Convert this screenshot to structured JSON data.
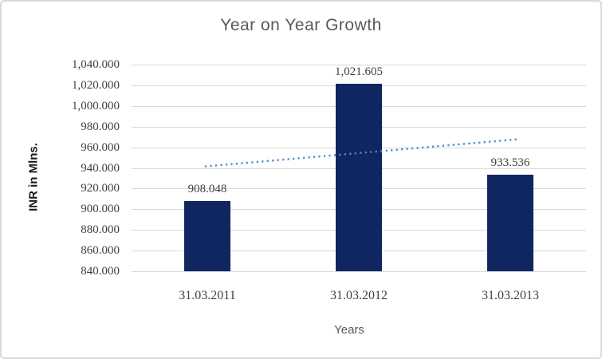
{
  "chart_data": {
    "type": "bar",
    "title": "Year on Year Growth",
    "xlabel": "Years",
    "ylabel": "INR in Mlns.",
    "categories": [
      "31.03.2011",
      "31.03.2012",
      "31.03.2013"
    ],
    "values": [
      908.048,
      1021.605,
      933.536
    ],
    "data_labels": [
      "908.048",
      "1,021.605",
      "933.536"
    ],
    "ylim": [
      840,
      1040
    ],
    "ytick_step": 20,
    "yticks": [
      {
        "value": 1040,
        "label": "1,040.000"
      },
      {
        "value": 1020,
        "label": "1,020.000"
      },
      {
        "value": 1000,
        "label": "1,000.000"
      },
      {
        "value": 980,
        "label": "980.000"
      },
      {
        "value": 960,
        "label": "960.000"
      },
      {
        "value": 940,
        "label": "940.000"
      },
      {
        "value": 920,
        "label": "920.000"
      },
      {
        "value": 900,
        "label": "900.000"
      },
      {
        "value": 880,
        "label": "880.000"
      },
      {
        "value": 860,
        "label": "860.000"
      },
      {
        "value": 840,
        "label": "840.000"
      }
    ],
    "grid": true,
    "legend": "none",
    "trendline": {
      "style": "dotted",
      "start_value": 941.65,
      "end_value": 967.14
    }
  },
  "colors": {
    "bar": "#102661",
    "trend": "#4e8acb",
    "grid": "#d9d9d9",
    "title_text": "#595959",
    "tick_text": "#404040",
    "border": "#d8d8d8"
  }
}
